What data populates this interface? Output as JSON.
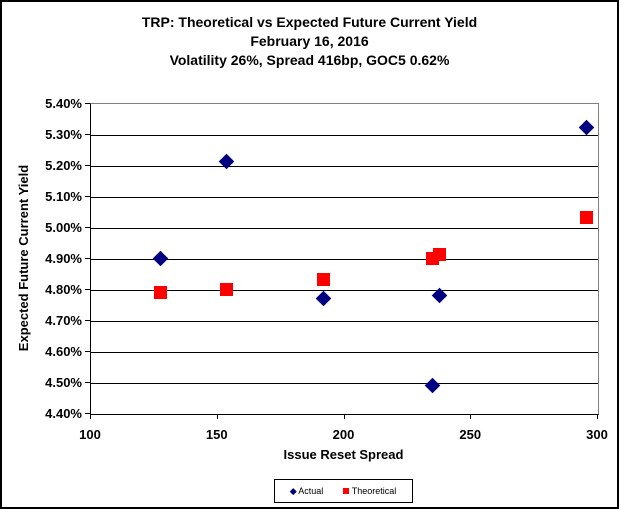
{
  "chart_data": {
    "type": "scatter",
    "title": "TRP: Theoretical vs Expected Future Current Yield",
    "subtitle": "February 16, 2016",
    "subtitle2": "Volatility 26%, Spread 416bp, GOC5 0.62%",
    "xlabel": "Issue Reset Spread",
    "ylabel": "Expected Future Current Yield",
    "xlim": [
      100,
      300
    ],
    "ylim": [
      4.4,
      5.4
    ],
    "x_ticks": [
      100,
      150,
      200,
      250,
      300
    ],
    "x_tick_labels": [
      "100",
      "150",
      "200",
      "250",
      "300"
    ],
    "y_tick_labels": [
      "5.40%",
      "5.30%",
      "5.20%",
      "5.10%",
      "5.00%",
      "4.90%",
      "4.80%",
      "4.70%",
      "4.60%",
      "4.50%",
      "4.40%"
    ],
    "grid": "horizontal",
    "legend_position": "bottom-center",
    "series": [
      {
        "name": "Actual",
        "marker": "diamond",
        "color": "#000080",
        "points": [
          {
            "x": 128,
            "y": 4.9
          },
          {
            "x": 154,
            "y": 5.21
          },
          {
            "x": 192,
            "y": 4.77
          },
          {
            "x": 235,
            "y": 4.49
          },
          {
            "x": 238,
            "y": 4.78
          },
          {
            "x": 296,
            "y": 5.32
          }
        ]
      },
      {
        "name": "Theoretical",
        "marker": "square",
        "color": "#FF0000",
        "points": [
          {
            "x": 128,
            "y": 4.79
          },
          {
            "x": 154,
            "y": 4.8
          },
          {
            "x": 192,
            "y": 4.83
          },
          {
            "x": 235,
            "y": 4.9
          },
          {
            "x": 238,
            "y": 4.91
          },
          {
            "x": 296,
            "y": 5.03
          }
        ]
      }
    ]
  }
}
